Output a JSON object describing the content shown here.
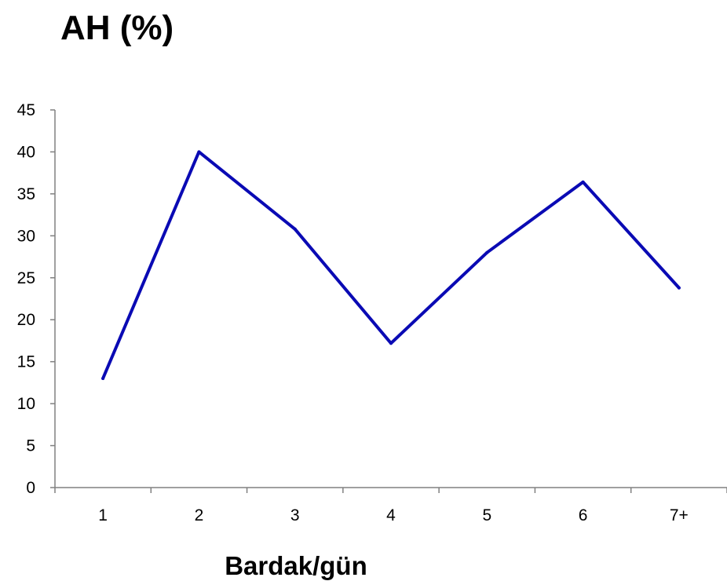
{
  "chart_data": {
    "type": "line",
    "title": "AH (%)",
    "xlabel": "Bardak/gün",
    "ylabel": "",
    "categories": [
      "1",
      "2",
      "3",
      "4",
      "5",
      "6",
      "7+"
    ],
    "yticks": [
      "0",
      "5",
      "10",
      "15",
      "20",
      "25",
      "30",
      "35",
      "40",
      "45"
    ],
    "ylim": [
      0,
      45
    ],
    "grid": false,
    "legend": "none",
    "series": [
      {
        "values": [
          13,
          40,
          30.8,
          17.2,
          28,
          36.4,
          23.8
        ],
        "color": "#0A0AB4"
      }
    ]
  }
}
